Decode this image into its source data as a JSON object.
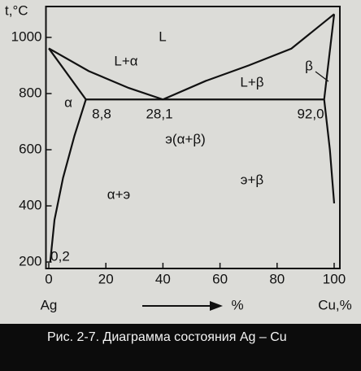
{
  "chart_data": {
    "type": "line",
    "caption": "Рис. 2-7. Диаграмма состояния Ag – Cu",
    "y_label": "t,°C",
    "x_label_left": "Ag",
    "x_label_mid": "%",
    "x_label_right": "Cu,%",
    "xlim": [
      -1,
      102
    ],
    "ylim": [
      177,
      1110
    ],
    "xticks": [
      0,
      20,
      40,
      60,
      80,
      100
    ],
    "yticks": [
      200,
      400,
      600,
      800,
      1000
    ],
    "color": "#111111",
    "series": [
      {
        "x": [
          0,
          14,
          28,
          40
        ],
        "values": [
          961,
          880,
          820,
          779
        ]
      },
      {
        "x": [
          40,
          55,
          70,
          85,
          100
        ],
        "values": [
          779,
          845,
          900,
          960,
          1083
        ]
      },
      {
        "x": [
          0,
          13
        ],
        "values": [
          961,
          779
        ]
      },
      {
        "x": [
          13,
          9,
          5,
          2,
          0.5
        ],
        "values": [
          779,
          650,
          500,
          350,
          200
        ]
      },
      {
        "x": [
          13,
          96.5
        ],
        "values": [
          779,
          779
        ]
      },
      {
        "x": [
          100,
          96.5
        ],
        "values": [
          1083,
          779
        ]
      },
      {
        "x": [
          96.5,
          98.5,
          100
        ],
        "values": [
          779,
          600,
          409
        ]
      }
    ],
    "annotations": [
      "L",
      "L+α",
      "L+β",
      "β",
      "α",
      "8,8",
      "28,1",
      "92,0",
      "э(α+β)",
      "α+э",
      "э+β",
      "0,2"
    ]
  }
}
